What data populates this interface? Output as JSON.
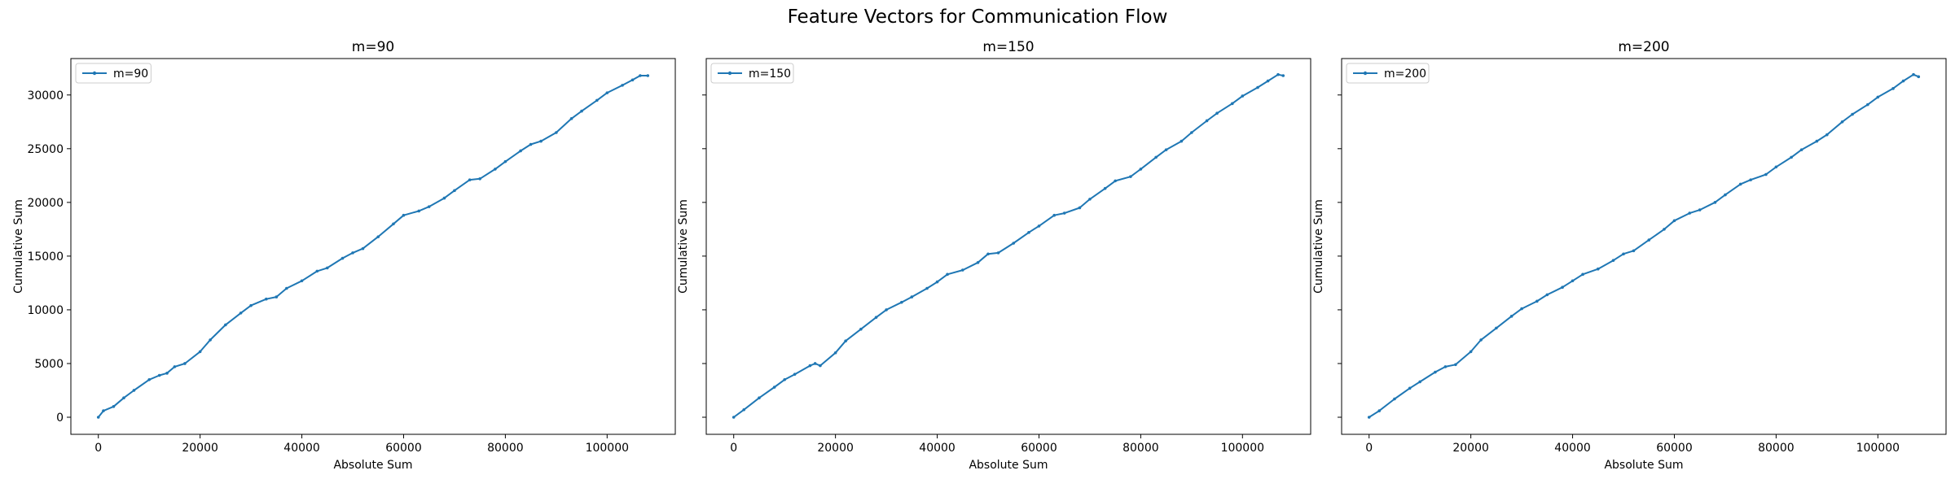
{
  "figure": {
    "suptitle": "Feature Vectors for Communication Flow"
  },
  "colors": {
    "line": "#1f77b4",
    "frame": "#000000",
    "legend_border": "#cccccc"
  },
  "chart_data": [
    {
      "type": "line",
      "title": "m=90",
      "xlabel": "Absolute Sum",
      "ylabel": "Cumulative Sum",
      "xlim": [
        -5400,
        113400
      ],
      "ylim": [
        -1590,
        33390
      ],
      "xticks": [
        0,
        20000,
        40000,
        60000,
        80000,
        100000
      ],
      "yticks": [
        0,
        5000,
        10000,
        15000,
        20000,
        25000,
        30000
      ],
      "y_ticklabels_visible": true,
      "legend": {
        "location": "upper-left",
        "entries": [
          "m=90"
        ]
      },
      "series": [
        {
          "name": "m=90",
          "marker": "dot",
          "x": [
            0,
            1000,
            3000,
            5000,
            7000,
            10000,
            12000,
            13500,
            15000,
            17000,
            20000,
            22000,
            25000,
            28000,
            30000,
            33000,
            35000,
            37000,
            40000,
            43000,
            45000,
            48000,
            50000,
            52000,
            55000,
            58000,
            60000,
            63000,
            65000,
            68000,
            70000,
            73000,
            75000,
            78000,
            80000,
            83000,
            85000,
            87000,
            90000,
            93000,
            95000,
            98000,
            100000,
            103000,
            105000,
            106500,
            108000
          ],
          "y": [
            0,
            600,
            1000,
            1800,
            2500,
            3500,
            3900,
            4100,
            4700,
            5000,
            6100,
            7200,
            8600,
            9700,
            10400,
            11000,
            11200,
            12000,
            12700,
            13600,
            13900,
            14800,
            15300,
            15700,
            16800,
            18000,
            18800,
            19200,
            19600,
            20400,
            21100,
            22100,
            22200,
            23100,
            23800,
            24800,
            25400,
            25700,
            26500,
            27800,
            28500,
            29500,
            30200,
            30900,
            31400,
            31800,
            31800
          ]
        }
      ]
    },
    {
      "type": "line",
      "title": "m=150",
      "xlabel": "Absolute Sum",
      "ylabel": "Cumulative Sum",
      "xlim": [
        -5400,
        113400
      ],
      "ylim": [
        -1590,
        33390
      ],
      "xticks": [
        0,
        20000,
        40000,
        60000,
        80000,
        100000
      ],
      "yticks": [
        0,
        5000,
        10000,
        15000,
        20000,
        25000,
        30000
      ],
      "y_ticklabels_visible": false,
      "legend": {
        "location": "upper-left",
        "entries": [
          "m=150"
        ]
      },
      "series": [
        {
          "name": "m=150",
          "marker": "dot",
          "x": [
            0,
            2000,
            5000,
            8000,
            10000,
            12000,
            15000,
            16000,
            17000,
            20000,
            22000,
            25000,
            28000,
            30000,
            33000,
            35000,
            38000,
            40000,
            42000,
            45000,
            48000,
            50000,
            52000,
            55000,
            58000,
            60000,
            63000,
            65000,
            68000,
            70000,
            73000,
            75000,
            78000,
            80000,
            83000,
            85000,
            88000,
            90000,
            93000,
            95000,
            98000,
            100000,
            103000,
            105000,
            107000,
            108000
          ],
          "y": [
            0,
            700,
            1800,
            2800,
            3500,
            4000,
            4800,
            5000,
            4800,
            6000,
            7100,
            8200,
            9300,
            10000,
            10700,
            11200,
            12000,
            12600,
            13300,
            13700,
            14400,
            15200,
            15300,
            16200,
            17200,
            17800,
            18800,
            19000,
            19500,
            20300,
            21300,
            22000,
            22400,
            23100,
            24200,
            24900,
            25700,
            26500,
            27600,
            28300,
            29200,
            29900,
            30700,
            31300,
            31900,
            31800
          ]
        }
      ]
    },
    {
      "type": "line",
      "title": "m=200",
      "xlabel": "Absolute Sum",
      "ylabel": "Cumulative Sum",
      "xlim": [
        -5400,
        113400
      ],
      "ylim": [
        -1590,
        33390
      ],
      "xticks": [
        0,
        20000,
        40000,
        60000,
        80000,
        100000
      ],
      "yticks": [
        0,
        5000,
        10000,
        15000,
        20000,
        25000,
        30000
      ],
      "y_ticklabels_visible": false,
      "legend": {
        "location": "upper-left",
        "entries": [
          "m=200"
        ]
      },
      "series": [
        {
          "name": "m=200",
          "marker": "dot",
          "x": [
            0,
            2000,
            5000,
            8000,
            10000,
            13000,
            15000,
            17000,
            20000,
            22000,
            25000,
            28000,
            30000,
            33000,
            35000,
            38000,
            40000,
            42000,
            45000,
            48000,
            50000,
            52000,
            55000,
            58000,
            60000,
            63000,
            65000,
            68000,
            70000,
            73000,
            75000,
            78000,
            80000,
            83000,
            85000,
            88000,
            90000,
            93000,
            95000,
            98000,
            100000,
            103000,
            105000,
            107000,
            108000
          ],
          "y": [
            0,
            600,
            1700,
            2700,
            3300,
            4200,
            4700,
            4900,
            6100,
            7200,
            8300,
            9400,
            10100,
            10800,
            11400,
            12100,
            12700,
            13300,
            13800,
            14600,
            15200,
            15500,
            16500,
            17500,
            18300,
            19000,
            19300,
            20000,
            20700,
            21700,
            22100,
            22600,
            23300,
            24200,
            24900,
            25700,
            26300,
            27500,
            28200,
            29100,
            29800,
            30600,
            31300,
            31900,
            31700
          ]
        }
      ]
    }
  ]
}
